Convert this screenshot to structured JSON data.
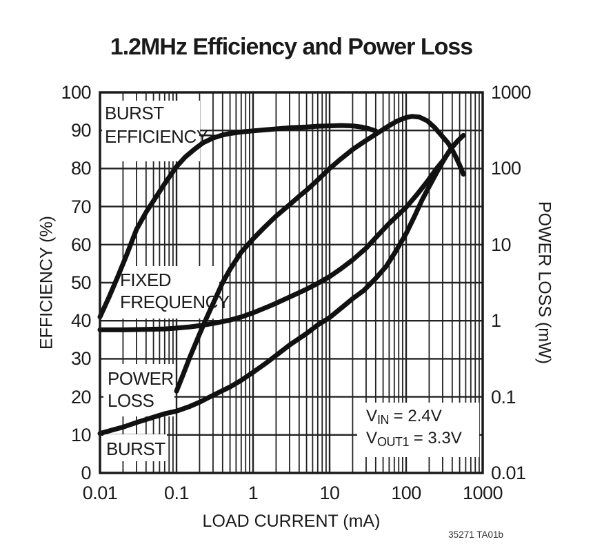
{
  "title": "1.2MHz Efficiency and Power Loss",
  "footnote": "35271 TA01b",
  "colors": {
    "ink": "#1a1a1a",
    "grid": "#222222",
    "curve": "#111111",
    "background": "#ffffff"
  },
  "annotations": {
    "burst_efficiency": {
      "line1": "BURST",
      "line2": "EFFICIENCY"
    },
    "fixed_frequency": {
      "line1": "FIXED",
      "line2": "FREQUENCY"
    },
    "power_loss": {
      "line1": "POWER",
      "line2": "LOSS"
    },
    "burst": {
      "line1": "BURST"
    },
    "conditions": {
      "vin_v": "V",
      "vin_sub": "IN",
      "vin_rest": " = 2.4V",
      "vout_v": "V",
      "vout_sub": "OUT1",
      "vout_rest": " = 3.3V"
    }
  },
  "chart_data": {
    "type": "line",
    "title": "1.2MHz Efficiency and Power Loss",
    "x_axis": {
      "label": "LOAD CURRENT (mA)",
      "scale": "log",
      "range": [
        0.01,
        1000
      ],
      "ticks": [
        "0.01",
        "0.1",
        "1",
        "10",
        "100",
        "1000"
      ]
    },
    "y_left": {
      "label": "EFFICIENCY (%)",
      "scale": "linear",
      "range": [
        0,
        100
      ],
      "ticks": [
        "100",
        "90",
        "80",
        "70",
        "60",
        "50",
        "40",
        "30",
        "20",
        "10",
        "0"
      ]
    },
    "y_right": {
      "label": "POWER LOSS (mW)",
      "scale": "log",
      "range": [
        0.01,
        1000
      ],
      "ticks": [
        "1000",
        "100",
        "10",
        "1",
        "0.1",
        "0.01"
      ]
    },
    "grid": {
      "major": true,
      "minor_log_x": true,
      "horizontal_every": 10
    },
    "legend_position": "in-plot text labels",
    "series": [
      {
        "name": "BURST EFFICIENCY",
        "axis": "left",
        "units": "%",
        "points": [
          [
            0.01,
            41
          ],
          [
            0.013,
            46
          ],
          [
            0.017,
            51.5
          ],
          [
            0.022,
            57
          ],
          [
            0.03,
            64
          ],
          [
            0.04,
            68.5
          ],
          [
            0.05,
            71.5
          ],
          [
            0.07,
            76
          ],
          [
            0.1,
            80.5
          ],
          [
            0.13,
            83
          ],
          [
            0.17,
            85
          ],
          [
            0.22,
            86.7
          ],
          [
            0.3,
            88
          ],
          [
            0.4,
            88.8
          ],
          [
            0.5,
            89.2
          ],
          [
            0.7,
            89.6
          ],
          [
            1,
            89.9
          ],
          [
            1.5,
            90.2
          ],
          [
            2,
            90.4
          ],
          [
            3,
            90.7
          ],
          [
            5,
            90.9
          ],
          [
            7,
            91.1
          ],
          [
            10,
            91.2
          ],
          [
            14,
            91.3
          ],
          [
            20,
            91.2
          ],
          [
            26,
            90.9
          ],
          [
            32,
            90.5
          ],
          [
            40,
            89.9
          ]
        ]
      },
      {
        "name": "FIXED FREQUENCY EFFICIENCY",
        "axis": "left",
        "units": "%",
        "points": [
          [
            0.1,
            21.5
          ],
          [
            0.12,
            25.5
          ],
          [
            0.15,
            30.5
          ],
          [
            0.2,
            36.5
          ],
          [
            0.25,
            41
          ],
          [
            0.3,
            44.5
          ],
          [
            0.4,
            50
          ],
          [
            0.5,
            53.5
          ],
          [
            0.7,
            58
          ],
          [
            1,
            61.5
          ],
          [
            1.4,
            64.5
          ],
          [
            2,
            67.5
          ],
          [
            3,
            70.5
          ],
          [
            4,
            72.7
          ],
          [
            5,
            74.3
          ],
          [
            7,
            77
          ],
          [
            10,
            80
          ],
          [
            14,
            82.5
          ],
          [
            20,
            85
          ],
          [
            28,
            87
          ],
          [
            40,
            89
          ],
          [
            55,
            90.8
          ],
          [
            75,
            92.4
          ],
          [
            100,
            93.4
          ],
          [
            120,
            93.7
          ],
          [
            150,
            93.5
          ],
          [
            190,
            92.5
          ],
          [
            235,
            90.8
          ],
          [
            290,
            88.7
          ],
          [
            350,
            86.8
          ],
          [
            391,
            85.3
          ],
          [
            440,
            83.3
          ],
          [
            500,
            80.9
          ],
          [
            560,
            78.5
          ]
        ]
      },
      {
        "name": "FIXED FREQUENCY POWER LOSS",
        "axis": "right",
        "units": "mW",
        "points": [
          [
            0.01,
            0.76
          ],
          [
            0.02,
            0.76
          ],
          [
            0.04,
            0.77
          ],
          [
            0.07,
            0.78
          ],
          [
            0.1,
            0.8
          ],
          [
            0.15,
            0.83
          ],
          [
            0.2,
            0.86
          ],
          [
            0.3,
            0.92
          ],
          [
            0.5,
            1.02
          ],
          [
            0.7,
            1.12
          ],
          [
            1,
            1.27
          ],
          [
            1.5,
            1.5
          ],
          [
            2,
            1.7
          ],
          [
            3,
            2.05
          ],
          [
            5,
            2.6
          ],
          [
            7,
            3.1
          ],
          [
            10,
            3.8
          ],
          [
            14,
            4.8
          ],
          [
            20,
            6.3
          ],
          [
            30,
            9
          ],
          [
            42,
            13
          ],
          [
            60,
            19
          ],
          [
            80,
            25
          ],
          [
            100,
            31
          ],
          [
            140,
            46
          ],
          [
            190,
            68
          ],
          [
            250,
            100
          ],
          [
            310,
            130
          ],
          [
            391,
            185
          ],
          [
            470,
            230
          ],
          [
            560,
            272
          ]
        ]
      },
      {
        "name": "BURST POWER LOSS",
        "axis": "right",
        "units": "mW",
        "points": [
          [
            0.01,
            0.033
          ],
          [
            0.015,
            0.037
          ],
          [
            0.02,
            0.04
          ],
          [
            0.03,
            0.046
          ],
          [
            0.05,
            0.054
          ],
          [
            0.07,
            0.06
          ],
          [
            0.1,
            0.065
          ],
          [
            0.15,
            0.075
          ],
          [
            0.2,
            0.085
          ],
          [
            0.3,
            0.105
          ],
          [
            0.5,
            0.135
          ],
          [
            0.7,
            0.165
          ],
          [
            1,
            0.21
          ],
          [
            1.5,
            0.28
          ],
          [
            2,
            0.35
          ],
          [
            3,
            0.48
          ],
          [
            5,
            0.68
          ],
          [
            7,
            0.88
          ],
          [
            10,
            1.1
          ],
          [
            14,
            1.45
          ],
          [
            20,
            1.95
          ],
          [
            28,
            2.5
          ],
          [
            40,
            3.6
          ],
          [
            55,
            5.2
          ],
          [
            75,
            8.5
          ],
          [
            100,
            14
          ],
          [
            130,
            24
          ],
          [
            160,
            38
          ],
          [
            200,
            58
          ],
          [
            250,
            88
          ],
          [
            300,
            122
          ],
          [
            360,
            165
          ],
          [
            391,
            185
          ]
        ]
      }
    ]
  }
}
